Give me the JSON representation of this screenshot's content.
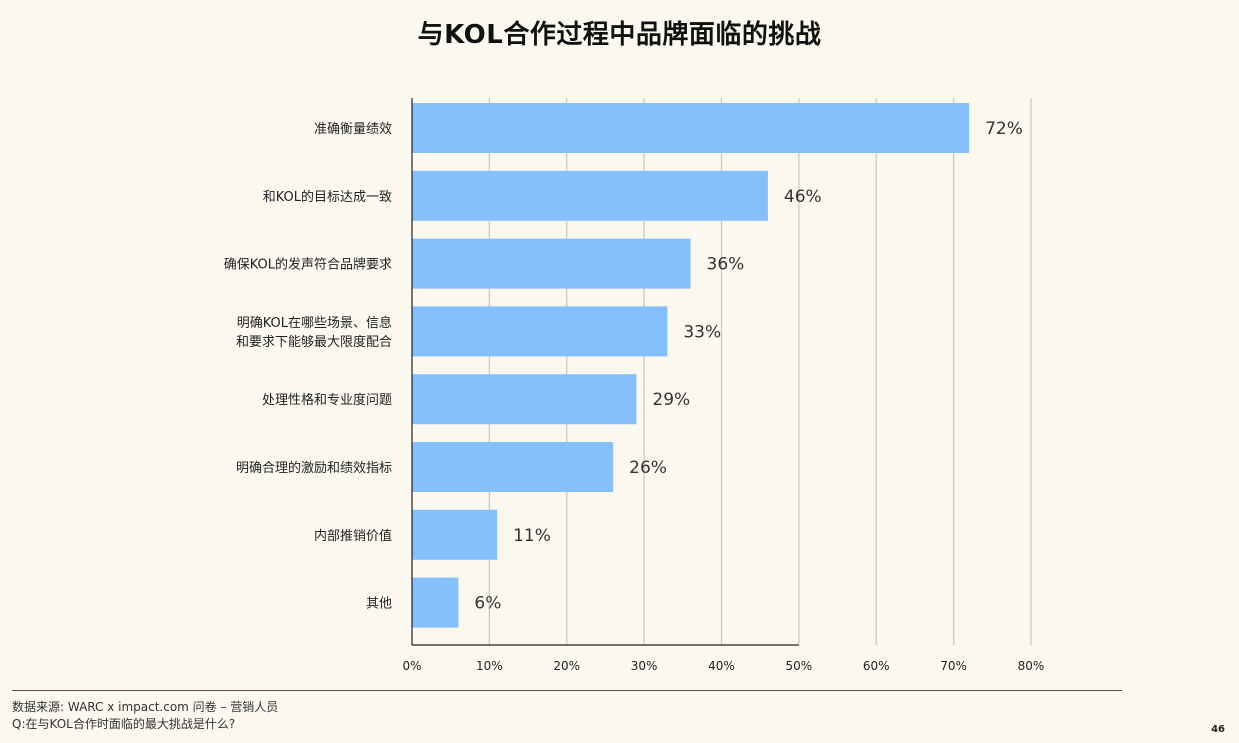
{
  "page": {
    "title": "与KOL合作过程中品牌面临的挑战",
    "source_line": "数据来源: WARC x impact.com 问卷 – 营销人员",
    "question_line": "Q:在与KOL合作时面临的最大挑战是什么?",
    "page_number": "46"
  },
  "colors": {
    "bar": "#85bffc",
    "grid": "#c9c6bf",
    "axis": "#222222",
    "background": "#fbf8f0"
  },
  "chart_data": {
    "type": "bar",
    "orientation": "horizontal",
    "title": "与KOL合作过程中品牌面临的挑战",
    "categories": [
      [
        "准确衡量绩效"
      ],
      [
        "和KOL的目标达成一致"
      ],
      [
        "确保KOL的发声符合品牌要求"
      ],
      [
        "明确KOL在哪些场景、信息",
        "和要求下能够最大限度配合"
      ],
      [
        "处理性格和专业度问题"
      ],
      [
        "明确合理的激励和绩效指标"
      ],
      [
        "内部推销价值"
      ],
      [
        "其他"
      ]
    ],
    "values": [
      72,
      46,
      36,
      33,
      29,
      26,
      11,
      6
    ],
    "value_labels": [
      "72%",
      "46%",
      "36%",
      "33%",
      "29%",
      "26%",
      "11%",
      "6%"
    ],
    "xlim": [
      0,
      80
    ],
    "xticks": [
      0,
      10,
      20,
      30,
      40,
      50,
      60,
      70,
      80
    ],
    "xtick_labels": [
      "0%",
      "10%",
      "20%",
      "30%",
      "40%",
      "50%",
      "60%",
      "70%",
      "80%"
    ],
    "xlabel": "",
    "ylabel": "",
    "grid": true,
    "legend": "none"
  }
}
